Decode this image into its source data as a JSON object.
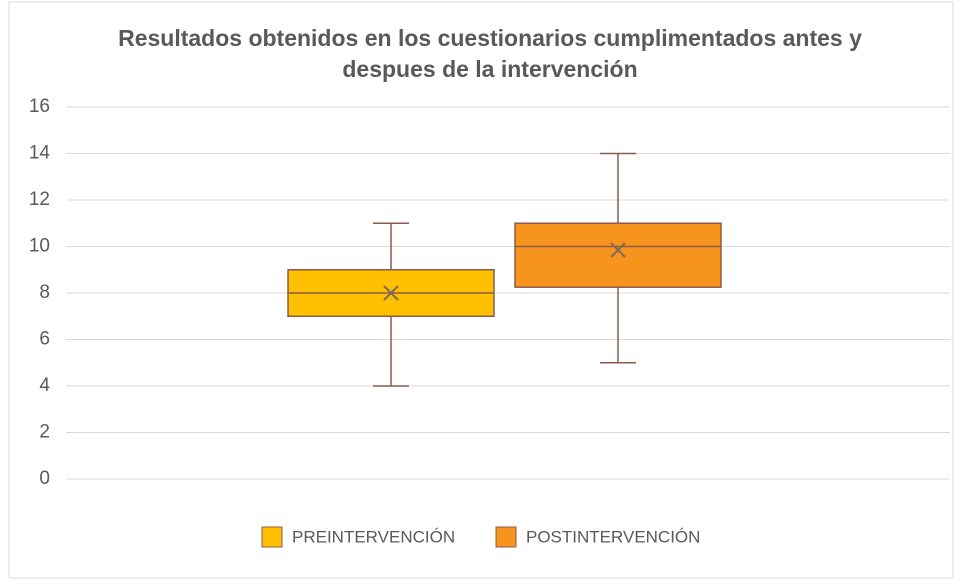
{
  "chart_data": {
    "type": "box",
    "title": [
      "Resultados obtenidos en los cuestionarios cumplimentados antes y",
      "despues de la intervención"
    ],
    "series": [
      {
        "name": "PREINTERVENCIÓN",
        "color": "#ffc000",
        "min": 4,
        "q1": 7,
        "median": 8,
        "q3": 9,
        "max": 11,
        "mean": 8
      },
      {
        "name": "POSTINTERVENCIÓN",
        "color": "#f7941d",
        "min": 5,
        "q1": 8.25,
        "median": 10,
        "q3": 11,
        "max": 14,
        "mean": 9.85
      }
    ],
    "ylim": [
      0,
      16
    ],
    "yticks": [
      0,
      2,
      4,
      6,
      8,
      10,
      12,
      14,
      16
    ],
    "grid": true,
    "legend": "bottom"
  }
}
